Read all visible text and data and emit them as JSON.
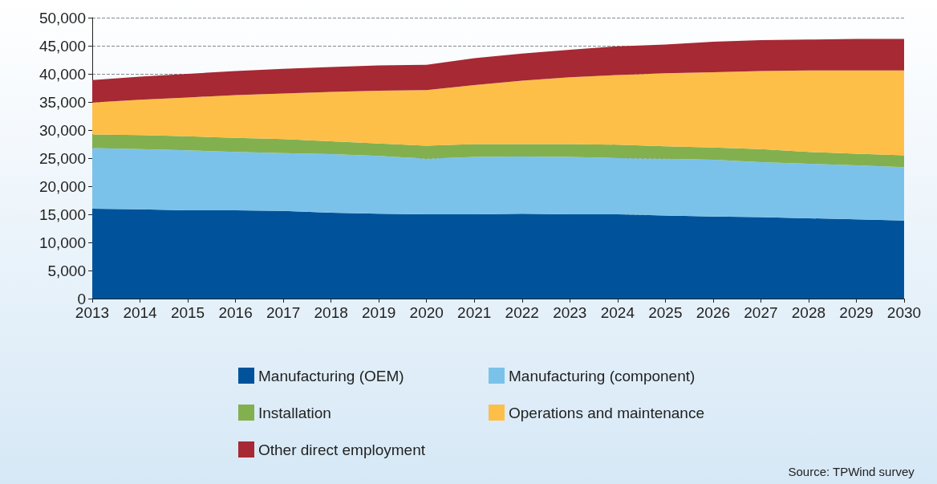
{
  "chart_data": {
    "type": "area",
    "stacked": true,
    "categories": [
      "2013",
      "2014",
      "2015",
      "2016",
      "2017",
      "2018",
      "2019",
      "2020",
      "2021",
      "2022",
      "2023",
      "2024",
      "2025",
      "2026",
      "2027",
      "2028",
      "2029",
      "2030"
    ],
    "series": [
      {
        "name": "Manufacturing (OEM)",
        "color": "#00539a",
        "values": [
          16000,
          15900,
          15700,
          15700,
          15600,
          15300,
          15100,
          15000,
          15000,
          15100,
          15000,
          15000,
          14800,
          14600,
          14500,
          14300,
          14100,
          13900
        ]
      },
      {
        "name": "Manufacturing (component)",
        "color": "#7bc2eb",
        "values": [
          10800,
          10700,
          10700,
          10400,
          10300,
          10400,
          10300,
          9900,
          10200,
          10200,
          10200,
          10000,
          10100,
          10100,
          9800,
          9700,
          9600,
          9500
        ]
      },
      {
        "name": "Installation",
        "color": "#82b04f",
        "values": [
          2400,
          2500,
          2500,
          2500,
          2500,
          2300,
          2200,
          2300,
          2300,
          2200,
          2300,
          2400,
          2200,
          2200,
          2300,
          2100,
          2100,
          2100
        ]
      },
      {
        "name": "Operations and maintenance",
        "color": "#fdbf48",
        "values": [
          5700,
          6300,
          6900,
          7600,
          8100,
          8800,
          9400,
          9900,
          10500,
          11300,
          11900,
          12400,
          13000,
          13400,
          13900,
          14500,
          14800,
          15100
        ]
      },
      {
        "name": "Other direct employment",
        "color": "#a62934",
        "values": [
          4000,
          4100,
          4200,
          4300,
          4400,
          4400,
          4500,
          4500,
          4800,
          4800,
          4900,
          5100,
          5100,
          5400,
          5500,
          5500,
          5600,
          5600
        ]
      }
    ],
    "ylim": [
      0,
      50000
    ],
    "yticks": [
      0,
      {
        "value": 5000,
        "label": "5,000"
      },
      {
        "value": 10000,
        "label": "10,000"
      },
      {
        "value": 15000,
        "label": "15,000"
      },
      {
        "value": 20000,
        "label": "20,000"
      },
      {
        "value": 25000,
        "label": "25,000"
      },
      {
        "value": 30000,
        "label": "30,000"
      },
      {
        "value": 35000,
        "label": "35,000"
      },
      {
        "value": 40000,
        "label": "40,000"
      },
      {
        "value": 45000,
        "label": "45,000"
      },
      {
        "value": 50000,
        "label": "50,000"
      }
    ],
    "grid": "y",
    "legend": "bottom",
    "annotations": [
      "Source: TPWind survey"
    ]
  }
}
